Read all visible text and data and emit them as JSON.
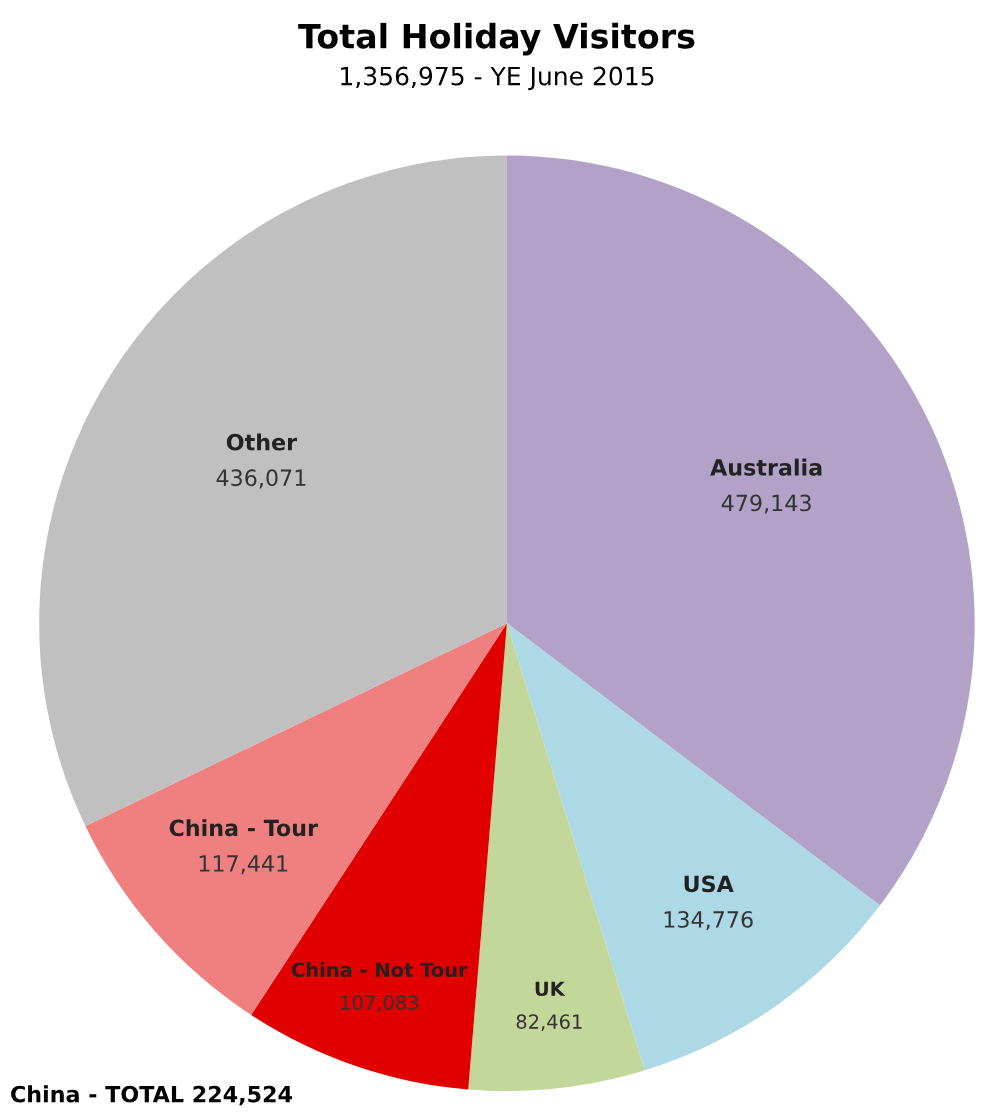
{
  "chart_data": {
    "type": "pie",
    "title": "Total Holiday Visitors",
    "subtitle": "1,356,975 - YE June 2015",
    "categories": [
      "Australia",
      "USA",
      "UK",
      "China - Not Tour",
      "China - Tour",
      "Other"
    ],
    "values": [
      479143,
      134776,
      82461,
      107083,
      117441,
      436071
    ],
    "value_labels": [
      "479,143",
      "134,776",
      "82,461",
      "107,083",
      "117,441",
      "436,071"
    ],
    "colors": [
      "#b3a2c8",
      "#add8e6",
      "#c4d79b",
      "#e00000",
      "#f08080",
      "#c0c0c0"
    ],
    "annotations": [
      "China - TOTAL 224,524"
    ],
    "legend": false
  }
}
